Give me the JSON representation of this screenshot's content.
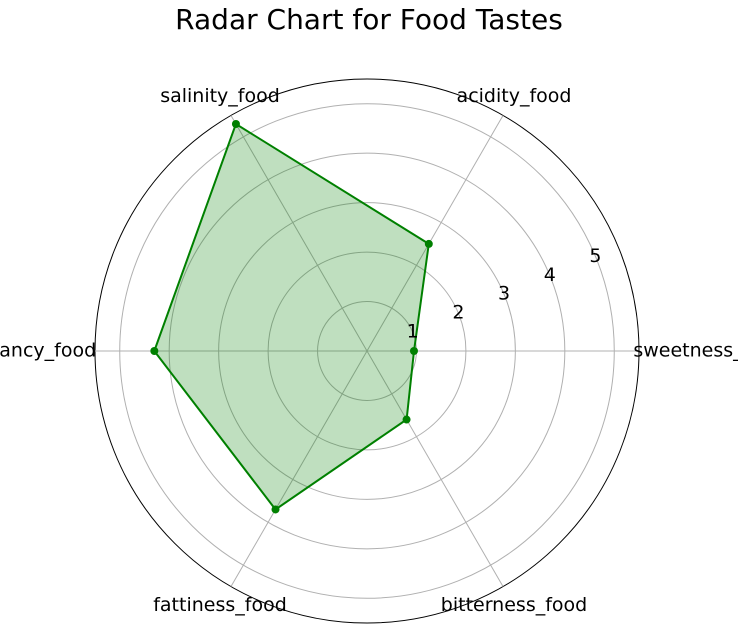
{
  "chart_data": {
    "type": "radar",
    "title": "Radar Chart for Food Tastes",
    "categories": [
      "sweetness_food",
      "acidity_food",
      "salinity_food",
      "piquancy_food",
      "fattiness_food",
      "bitterness_food"
    ],
    "values": [
      0.95,
      2.5,
      5.3,
      4.3,
      3.7,
      1.6
    ],
    "r_ticks": [
      1,
      2,
      3,
      4,
      5
    ],
    "r_max": 5.5,
    "grid": true,
    "colors": {
      "line": "#008000",
      "fill": "#008000",
      "grid": "#b0b0b0",
      "frame": "#000000"
    }
  }
}
